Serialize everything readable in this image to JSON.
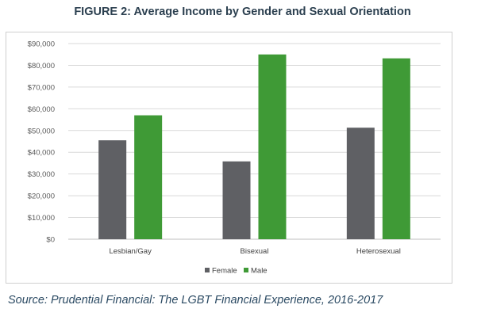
{
  "title": "FIGURE 2: Average Income by Gender and Sexual Orientation",
  "source": "Source: Prudential Financial: The LGBT Financial Experience, 2016-2017",
  "colors": {
    "female": "#5f6064",
    "male": "#3f9a36",
    "grid": "#d9d9d9",
    "title": "#2b3f4f",
    "source": "#2b4a63"
  },
  "chart_data": {
    "type": "bar",
    "title": "FIGURE 2: Average Income by Gender and Sexual Orientation",
    "categories": [
      "Lesbian/Gay",
      "Bisexual",
      "Heterosexual"
    ],
    "series": [
      {
        "name": "Female",
        "values": [
          45500,
          35800,
          51300
        ]
      },
      {
        "name": "Male",
        "values": [
          57000,
          85000,
          83200
        ]
      }
    ],
    "ylim": [
      0,
      90000
    ],
    "y_ticks": [
      "$0",
      "$10,000",
      "$20,000",
      "$30,000",
      "$40,000",
      "$50,000",
      "$60,000",
      "$70,000",
      "$80,000",
      "$90,000"
    ],
    "y_tick_values": [
      0,
      10000,
      20000,
      30000,
      40000,
      50000,
      60000,
      70000,
      80000,
      90000
    ],
    "xlabel": "",
    "ylabel": "",
    "grid": true,
    "legend_position": "bottom"
  }
}
